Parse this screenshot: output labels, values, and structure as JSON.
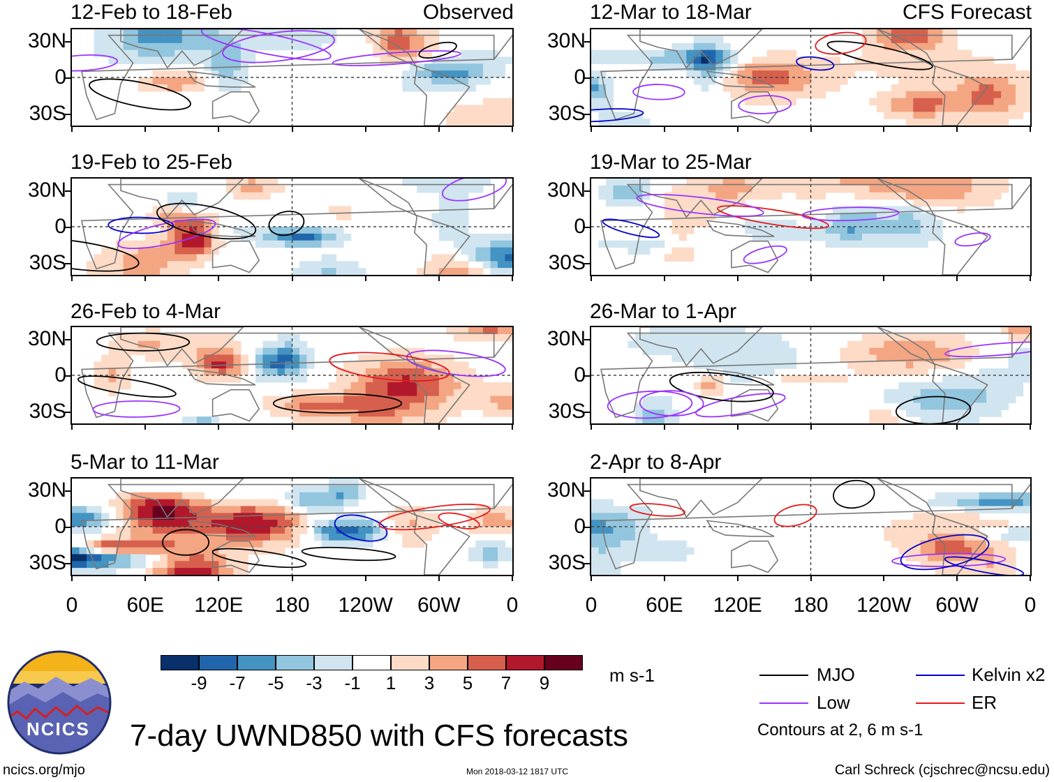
{
  "chart_data": {
    "type": "heatmap",
    "title": "7-day UWND850 with CFS forecasts",
    "variable": "UWND850",
    "units": "m s-1",
    "column_headers": {
      "observed": "Observed",
      "forecast": "CFS Forecast"
    },
    "y_ticks": [
      "30N",
      "0",
      "30S"
    ],
    "x_ticks": [
      "0",
      "60E",
      "120E",
      "180",
      "120W",
      "60W",
      "0"
    ],
    "observed_periods": [
      "12-Feb to 18-Feb",
      "19-Feb to 25-Feb",
      "26-Feb to 4-Mar",
      "5-Mar to 11-Mar"
    ],
    "forecast_periods": [
      "12-Mar to 18-Mar",
      "19-Mar to 25-Mar",
      "26-Mar to 1-Apr",
      "2-Apr to 8-Apr"
    ],
    "colorbar": {
      "ticks": [
        "-9",
        "-7",
        "-5",
        "-3",
        "-1",
        "1",
        "3",
        "5",
        "7",
        "9"
      ],
      "colors": [
        "#08306b",
        "#2166ac",
        "#4393c3",
        "#92c5de",
        "#d1e5f0",
        "#ffffff",
        "#fddbc7",
        "#f4a582",
        "#d6604d",
        "#b2182b",
        "#67001f"
      ]
    },
    "contour_legend": [
      {
        "label": "MJO",
        "color": "#000000"
      },
      {
        "label": "Kelvin x2",
        "color": "#0000cc"
      },
      {
        "label": "Low",
        "color": "#9933ff"
      },
      {
        "label": "ER",
        "color": "#e31a1c"
      }
    ],
    "contour_note": "Contours at 2, 6 m s-1"
  },
  "footer": {
    "logo_text": "NCICS",
    "url": "ncics.org/mjo",
    "timestamp": "Mon 2018-03-12 1817 UTC",
    "credit": "Carl Schreck (cjschrec@ncsu.edu)"
  }
}
